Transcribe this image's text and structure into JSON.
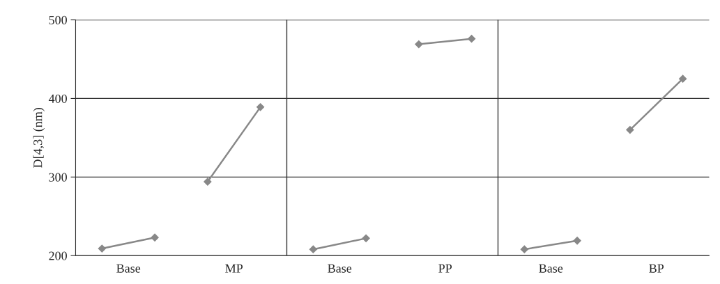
{
  "chart_data": {
    "type": "line",
    "ylabel": "D[4,3] (nm)",
    "categories": [
      null,
      null,
      null,
      null,
      null,
      null,
      null,
      null,
      null,
      null,
      null,
      null
    ],
    "annotations": [
      "Base",
      "MP",
      "Base",
      "PP",
      "Base",
      "BP"
    ],
    "ylim": [
      200,
      500
    ],
    "yticks": [
      200,
      300,
      400,
      500
    ],
    "grid": "y",
    "marker": "diamond",
    "line_style": "solid",
    "series": [
      {
        "color": "#888888",
        "values": [
          209,
          223,
          null,
          null,
          null,
          null,
          null,
          null,
          null,
          null,
          null,
          null
        ]
      },
      {
        "color": "#888888",
        "values": [
          null,
          null,
          294,
          389,
          null,
          null,
          null,
          null,
          null,
          null,
          null,
          null
        ]
      },
      {
        "color": "#888888",
        "values": [
          null,
          null,
          null,
          null,
          208,
          222,
          null,
          null,
          null,
          null,
          null,
          null
        ]
      },
      {
        "color": "#888888",
        "values": [
          null,
          null,
          null,
          null,
          null,
          null,
          469,
          476,
          null,
          null,
          null,
          null
        ]
      },
      {
        "color": "#888888",
        "values": [
          null,
          null,
          null,
          null,
          null,
          null,
          null,
          null,
          208,
          219,
          null,
          null
        ]
      },
      {
        "color": "#888888",
        "values": [
          null,
          null,
          null,
          null,
          null,
          null,
          null,
          null,
          null,
          null,
          360,
          425
        ]
      }
    ]
  }
}
